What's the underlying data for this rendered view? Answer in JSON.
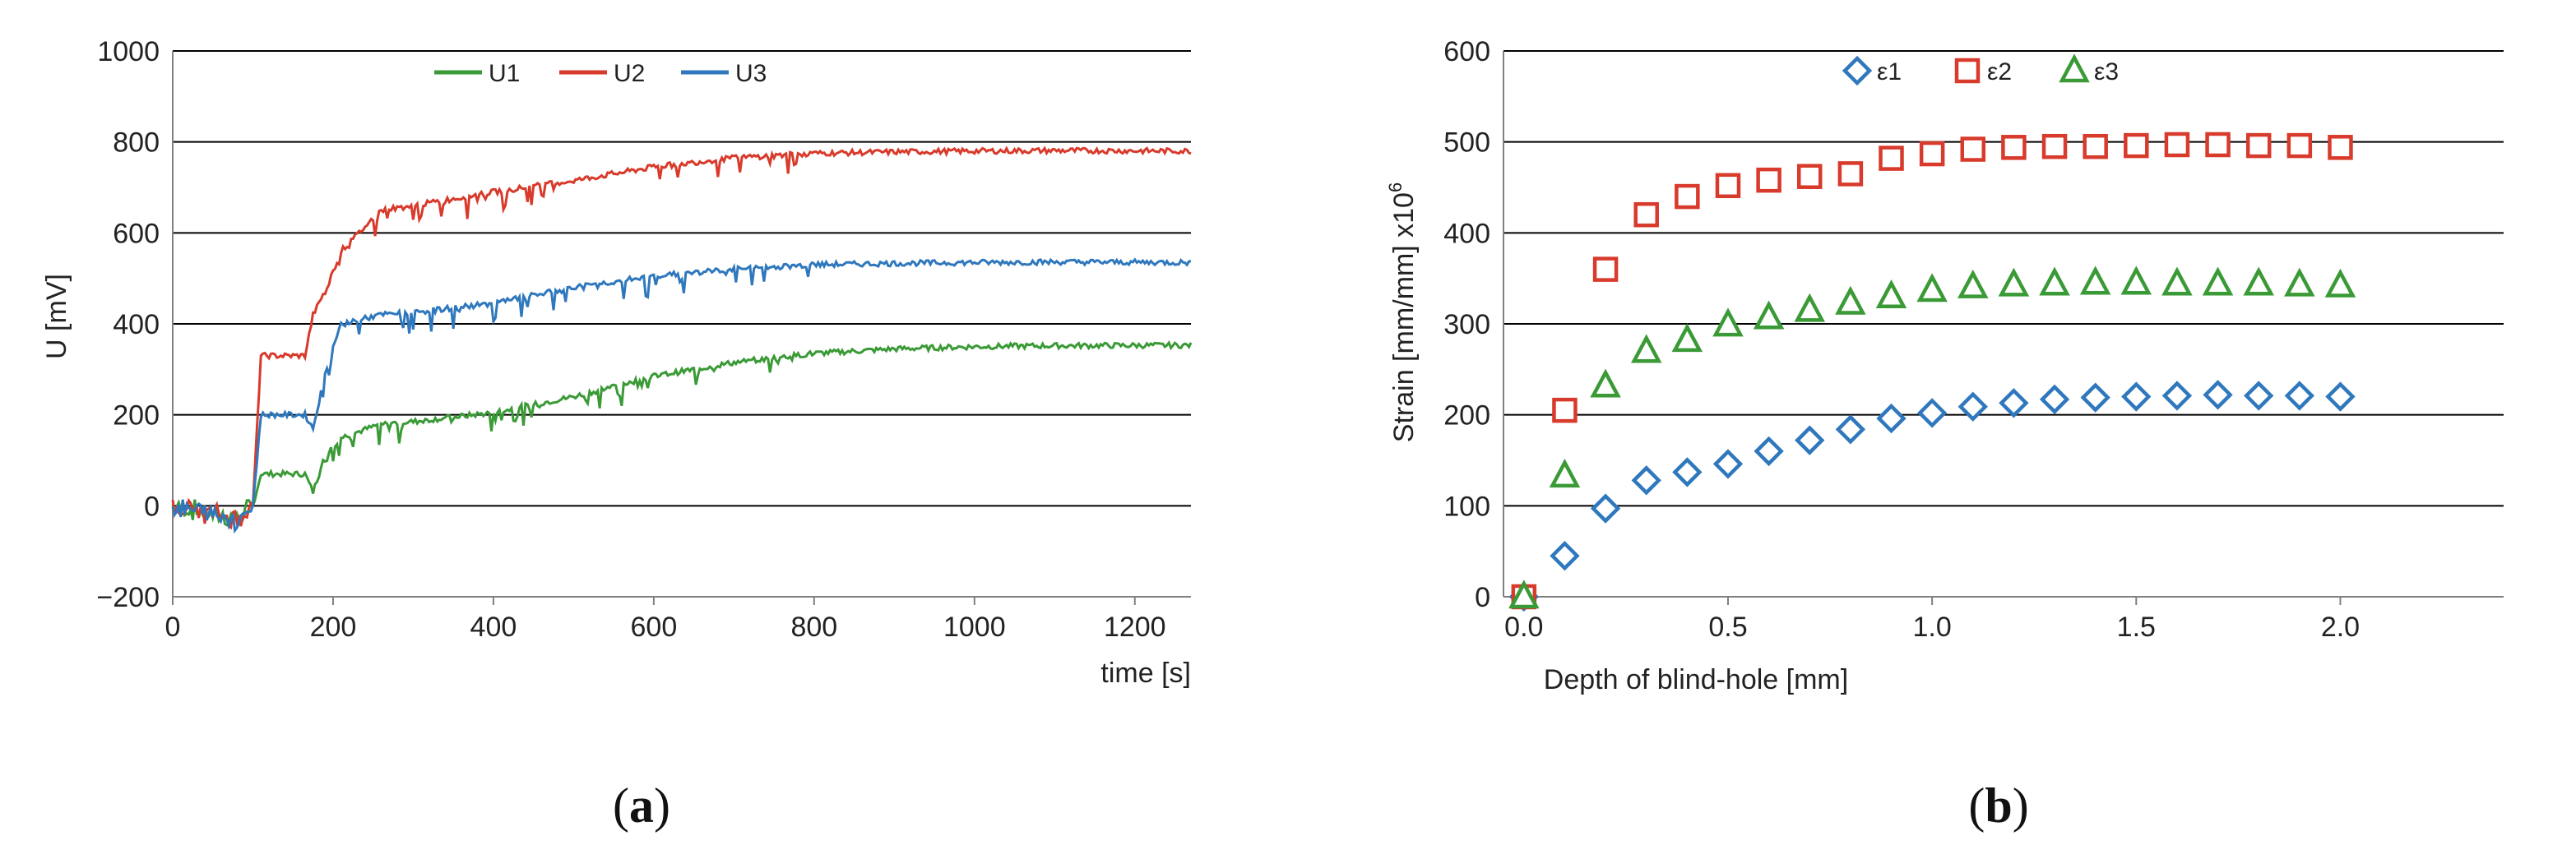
{
  "colors": {
    "green": "#3a9a36",
    "red": "#d83a2b",
    "blue": "#2f78bd",
    "grid": "#000000",
    "axis": "#808080"
  },
  "panels": {
    "a": "a",
    "b": "b",
    "open": "(",
    "close": ")"
  },
  "chart_data": [
    {
      "type": "line",
      "title": "",
      "xlabel": "time [s]",
      "ylabel": "U [mV]",
      "xlim": [
        0,
        1270
      ],
      "ylim": [
        -200,
        1000
      ],
      "xticks": [
        "0",
        "200",
        "400",
        "600",
        "800",
        "1000",
        "1200"
      ],
      "yticks": [
        "−200",
        "0",
        "200",
        "400",
        "600",
        "800",
        "1000"
      ],
      "grid": "horizontal",
      "legend": "top",
      "series": [
        {
          "name": "U1",
          "color": "#3a9a36",
          "x": [
            0,
            80,
            100,
            110,
            165,
            175,
            190,
            210,
            260,
            300,
            400,
            500,
            600,
            700,
            800,
            900,
            1000,
            1100,
            1270
          ],
          "y": [
            0,
            -30,
            0,
            70,
            70,
            30,
            110,
            150,
            180,
            185,
            205,
            240,
            285,
            315,
            335,
            345,
            350,
            352,
            353
          ]
        },
        {
          "name": "U2",
          "color": "#d83a2b",
          "x": [
            0,
            80,
            100,
            110,
            165,
            175,
            190,
            210,
            260,
            300,
            400,
            500,
            600,
            700,
            800,
            900,
            1000,
            1100,
            1270
          ],
          "y": [
            0,
            -30,
            0,
            330,
            330,
            420,
            470,
            560,
            650,
            660,
            690,
            715,
            745,
            765,
            775,
            778,
            780,
            781,
            780
          ]
        },
        {
          "name": "U3",
          "color": "#2f78bd",
          "x": [
            0,
            80,
            100,
            110,
            165,
            175,
            190,
            210,
            260,
            300,
            400,
            500,
            600,
            700,
            800,
            900,
            1000,
            1100,
            1270
          ],
          "y": [
            0,
            -30,
            0,
            200,
            200,
            170,
            290,
            400,
            420,
            425,
            445,
            480,
            505,
            520,
            530,
            533,
            535,
            536,
            535
          ]
        }
      ]
    },
    {
      "type": "scatter",
      "title": "",
      "xlabel": "Depth of blind-hole [mm]",
      "ylabel": "Strain [mm/mm] x10",
      "ylabel_sup": "6",
      "xlim": [
        -0.05,
        2.4
      ],
      "ylim": [
        0,
        600
      ],
      "xticks": [
        "0.0",
        "0.5",
        "1.0",
        "1.5",
        "2.0"
      ],
      "yticks": [
        "0",
        "100",
        "200",
        "300",
        "400",
        "500",
        "600"
      ],
      "grid": "horizontal",
      "legend": "top",
      "x": [
        0.0,
        0.1,
        0.2,
        0.3,
        0.4,
        0.5,
        0.6,
        0.7,
        0.8,
        0.9,
        1.0,
        1.1,
        1.2,
        1.3,
        1.4,
        1.5,
        1.6,
        1.7,
        1.8,
        1.9,
        2.0
      ],
      "series": [
        {
          "name": "ε1",
          "marker": "diamond",
          "color": "#2f78bd",
          "values": [
            0,
            45,
            97,
            128,
            137,
            146,
            160,
            172,
            184,
            196,
            202,
            209,
            213,
            217,
            219,
            220,
            221,
            222,
            221,
            221,
            220
          ]
        },
        {
          "name": "ε2",
          "marker": "square",
          "color": "#d83a2b",
          "values": [
            0,
            205,
            360,
            420,
            440,
            452,
            458,
            462,
            465,
            482,
            487,
            492,
            494,
            495,
            495,
            496,
            497,
            497,
            496,
            496,
            494
          ]
        },
        {
          "name": "ε3",
          "marker": "triangle",
          "color": "#3a9a36",
          "values": [
            0,
            133,
            232,
            270,
            282,
            299,
            307,
            315,
            323,
            330,
            337,
            341,
            343,
            344,
            345,
            345,
            344,
            344,
            344,
            343,
            342
          ]
        }
      ]
    }
  ]
}
